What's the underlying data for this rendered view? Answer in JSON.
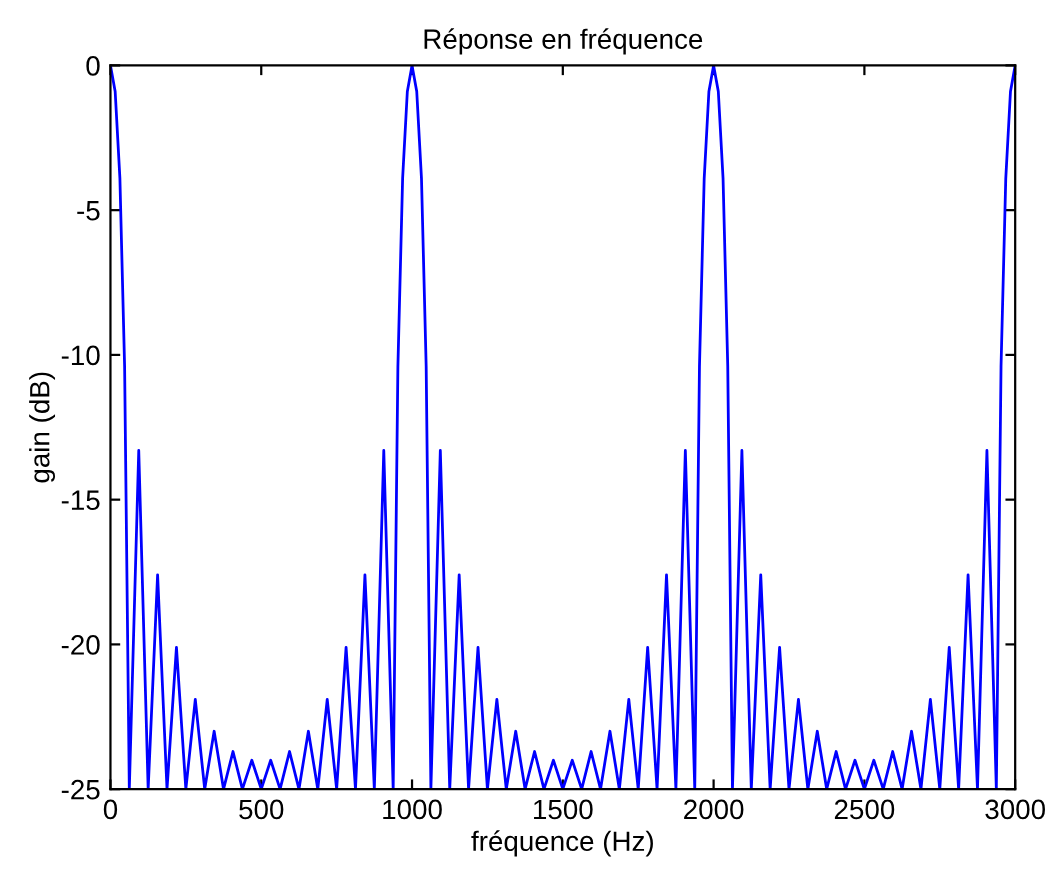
{
  "chart_data": {
    "type": "line",
    "title": "Réponse en fréquence",
    "xlabel": "fréquence (Hz)",
    "ylabel": "gain (dB)",
    "xlim": [
      0,
      3000
    ],
    "xticks": [
      0,
      500,
      1000,
      1500,
      2000,
      2500,
      3000
    ],
    "ylim": [
      -25,
      0
    ],
    "yticks": [
      -25,
      -20,
      -15,
      -10,
      -5,
      0
    ],
    "grid": false,
    "legend": false,
    "series": [
      {
        "color": "#0000ff",
        "x": [
          0,
          15.6,
          31.3,
          46.9,
          62.5,
          93.8,
          125,
          156.3,
          187.5,
          218.8,
          250,
          281.3,
          312.5,
          343.8,
          375,
          406.3,
          437.5,
          468.8,
          500,
          531.3,
          562.5,
          593.8,
          625,
          656.3,
          687.5,
          718.8,
          750,
          781.3,
          812.5,
          843.8,
          875,
          906.3,
          937.5,
          953.1,
          968.8,
          984.4,
          1000,
          1015.6,
          1031.3,
          1046.9,
          1062.5,
          1093.8,
          1125,
          1156.3,
          1187.5,
          1218.8,
          1250,
          1281.3,
          1312.5,
          1343.8,
          1375,
          1406.3,
          1437.5,
          1468.8,
          1500,
          1531.3,
          1562.5,
          1593.8,
          1625,
          1656.3,
          1687.5,
          1718.8,
          1750,
          1781.3,
          1812.5,
          1843.8,
          1875,
          1906.3,
          1937.5,
          1953.1,
          1968.8,
          1984.4,
          2000,
          2015.6,
          2031.3,
          2046.9,
          2062.5,
          2093.8,
          2125,
          2156.3,
          2187.5,
          2218.8,
          2250,
          2281.3,
          2312.5,
          2343.8,
          2375,
          2406.3,
          2437.5,
          2468.8,
          2500,
          2531.3,
          2562.5,
          2593.8,
          2625,
          2656.3,
          2687.5,
          2718.8,
          2750,
          2781.3,
          2812.5,
          2843.8,
          2875,
          2906.3,
          2937.5,
          2953.1,
          2968.8,
          2984.4,
          3000
        ],
        "values": [
          0,
          -0.9,
          -3.9,
          -10.4,
          -25,
          -13.3,
          -25,
          -17.6,
          -25,
          -20.1,
          -25,
          -21.9,
          -25,
          -23.0,
          -25,
          -23.7,
          -25,
          -24.0,
          -25,
          -24.0,
          -25,
          -23.7,
          -25,
          -23.0,
          -25,
          -21.9,
          -25,
          -20.1,
          -25,
          -17.6,
          -25,
          -13.3,
          -25,
          -10.4,
          -3.9,
          -0.9,
          0,
          -0.9,
          -3.9,
          -10.4,
          -25,
          -13.3,
          -25,
          -17.6,
          -25,
          -20.1,
          -25,
          -21.9,
          -25,
          -23.0,
          -25,
          -23.7,
          -25,
          -24.0,
          -25,
          -24.0,
          -25,
          -23.7,
          -25,
          -23.0,
          -25,
          -21.9,
          -25,
          -20.1,
          -25,
          -17.6,
          -25,
          -13.3,
          -25,
          -10.4,
          -3.9,
          -0.9,
          0,
          -0.9,
          -3.9,
          -10.4,
          -25,
          -13.3,
          -25,
          -17.6,
          -25,
          -20.1,
          -25,
          -21.9,
          -25,
          -23.0,
          -25,
          -23.7,
          -25,
          -24.0,
          -25,
          -24.0,
          -25,
          -23.7,
          -25,
          -23.0,
          -25,
          -21.9,
          -25,
          -20.1,
          -25,
          -17.6,
          -25,
          -13.3,
          -25,
          -10.4,
          -3.9,
          -0.9,
          0
        ]
      }
    ]
  }
}
